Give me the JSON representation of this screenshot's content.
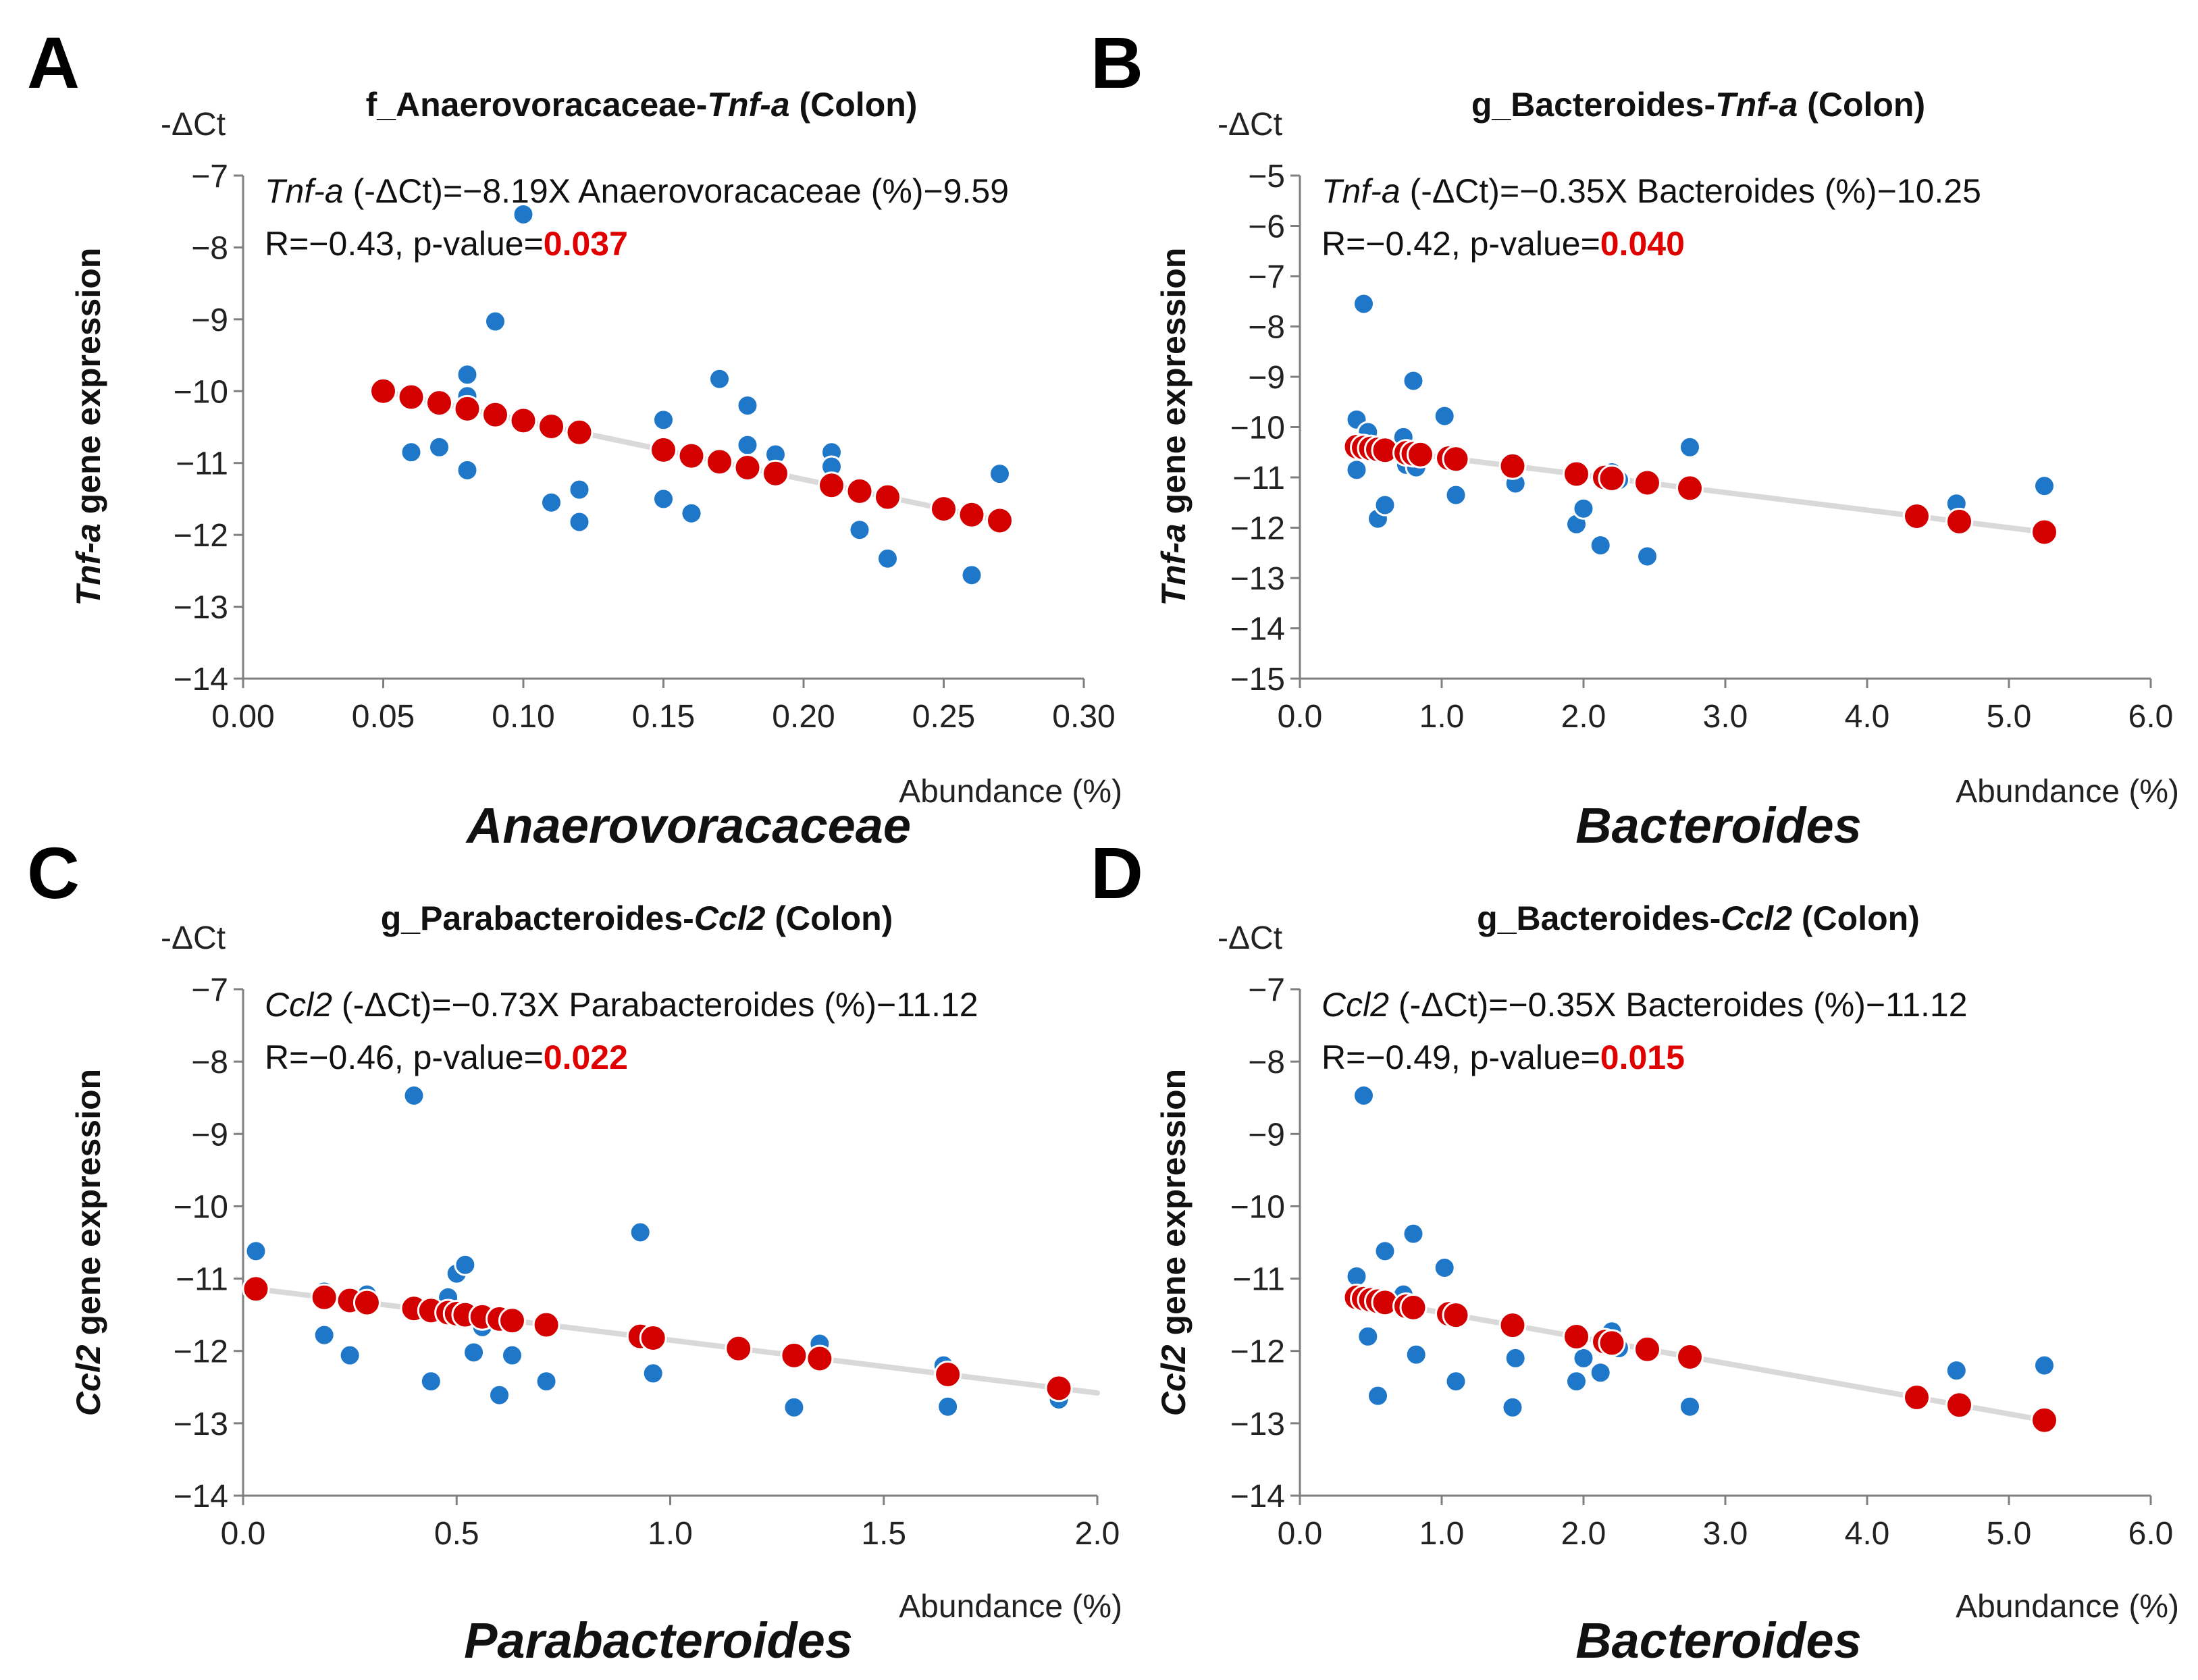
{
  "colors": {
    "observed": "#1f77c9",
    "predicted": "#d40000",
    "pvalue": "#e00000",
    "trendline": "#d9d9d9",
    "axis": "#7f7f7f"
  },
  "chart_data": [
    {
      "type": "scatter",
      "panel": "A",
      "title": {
        "prefix": "f_Anaerovoracaceae-",
        "gene": "Tnf-a",
        "suffix": " (Colon)"
      },
      "equation": {
        "gene": "Tnf-a",
        "rest": " (-ΔCt)=−8.19X Anaerovoracaceae (%)−9.59"
      },
      "stats": {
        "prefix": "R=−0.43, p-value=",
        "pvalue": "0.037"
      },
      "ylabel": {
        "gene": "Tnf-a",
        "rest": " gene expression"
      },
      "yunit": "-ΔCt",
      "xunit": "Abundance (%)",
      "xlabel": "Anaerovoracaceae",
      "xlim": [
        0,
        0.3
      ],
      "ylim": [
        -14,
        -7
      ],
      "xticks": [
        0,
        0.05,
        0.1,
        0.15,
        0.2,
        0.25,
        0.3
      ],
      "xtick_labels": [
        "0.00",
        "0.05",
        "0.10",
        "0.15",
        "0.20",
        "0.25",
        "0.30"
      ],
      "yticks": [
        -14,
        -13,
        -12,
        -11,
        -10,
        -9,
        -8,
        -7
      ],
      "ytick_labels": [
        "−14",
        "−13",
        "−12",
        "−11",
        "−10",
        "−9",
        "−8",
        "−7"
      ],
      "trend": {
        "slope": -8.19,
        "intercept": -9.59,
        "x_range": [
          0.05,
          0.27
        ]
      },
      "predicted_x": [
        0.05,
        0.06,
        0.07,
        0.08,
        0.09,
        0.1,
        0.11,
        0.12,
        0.15,
        0.16,
        0.17,
        0.18,
        0.19,
        0.21,
        0.22,
        0.23,
        0.25,
        0.26,
        0.27
      ],
      "observed": [
        [
          0.06,
          -10.85
        ],
        [
          0.07,
          -10.78
        ],
        [
          0.08,
          -9.77
        ],
        [
          0.08,
          -10.07
        ],
        [
          0.08,
          -11.1
        ],
        [
          0.09,
          -9.03
        ],
        [
          0.1,
          -7.54
        ],
        [
          0.11,
          -11.55
        ],
        [
          0.12,
          -11.37
        ],
        [
          0.12,
          -11.82
        ],
        [
          0.15,
          -10.4
        ],
        [
          0.15,
          -11.5
        ],
        [
          0.16,
          -11.7
        ],
        [
          0.17,
          -9.83
        ],
        [
          0.18,
          -10.2
        ],
        [
          0.18,
          -10.75
        ],
        [
          0.19,
          -10.88
        ],
        [
          0.21,
          -10.85
        ],
        [
          0.21,
          -11.05
        ],
        [
          0.22,
          -11.93
        ],
        [
          0.23,
          -12.33
        ],
        [
          0.25,
          -11.6
        ],
        [
          0.26,
          -12.56
        ],
        [
          0.27,
          -11.15
        ]
      ]
    },
    {
      "type": "scatter",
      "panel": "B",
      "title": {
        "prefix": "g_Bacteroides-",
        "gene": "Tnf-a",
        "suffix": " (Colon)"
      },
      "equation": {
        "gene": "Tnf-a",
        "rest": " (-ΔCt)=−0.35X Bacteroides (%)−10.25"
      },
      "stats": {
        "prefix": "R=−0.42, p-value=",
        "pvalue": "0.040"
      },
      "ylabel": {
        "gene": "Tnf-a",
        "rest": " gene expression"
      },
      "yunit": "-ΔCt",
      "xunit": "Abundance (%)",
      "xlabel": "Bacteroides",
      "xlim": [
        0,
        6
      ],
      "ylim": [
        -15,
        -5
      ],
      "xticks": [
        0,
        1,
        2,
        3,
        4,
        5,
        6
      ],
      "xtick_labels": [
        "0.0",
        "1.0",
        "2.0",
        "3.0",
        "4.0",
        "5.0",
        "6.0"
      ],
      "yticks": [
        -15,
        -14,
        -13,
        -12,
        -11,
        -10,
        -9,
        -8,
        -7,
        -6,
        -5
      ],
      "ytick_labels": [
        "−15",
        "−14",
        "−13",
        "−12",
        "−11",
        "−10",
        "−9",
        "−8",
        "−7",
        "−6",
        "−5"
      ],
      "trend": {
        "slope": -0.35,
        "intercept": -10.25,
        "x_range": [
          0.4,
          5.25
        ]
      },
      "predicted_x": [
        0.4,
        0.45,
        0.5,
        0.55,
        0.6,
        0.75,
        0.8,
        0.85,
        1.05,
        1.1,
        1.5,
        1.95,
        2.15,
        2.2,
        2.45,
        2.75,
        4.35,
        4.65,
        5.25
      ],
      "observed": [
        [
          0.4,
          -9.85
        ],
        [
          0.4,
          -10.85
        ],
        [
          0.45,
          -7.55
        ],
        [
          0.48,
          -10.1
        ],
        [
          0.55,
          -11.82
        ],
        [
          0.6,
          -11.55
        ],
        [
          0.73,
          -10.2
        ],
        [
          0.75,
          -10.75
        ],
        [
          0.8,
          -9.08
        ],
        [
          0.82,
          -10.8
        ],
        [
          1.02,
          -9.78
        ],
        [
          1.1,
          -11.35
        ],
        [
          1.5,
          -10.88
        ],
        [
          1.52,
          -11.12
        ],
        [
          1.95,
          -11.93
        ],
        [
          2.0,
          -11.62
        ],
        [
          2.12,
          -12.35
        ],
        [
          2.2,
          -10.9
        ],
        [
          2.25,
          -11.05
        ],
        [
          2.45,
          -12.57
        ],
        [
          2.75,
          -10.4
        ],
        [
          4.33,
          -11.75
        ],
        [
          4.63,
          -11.52
        ],
        [
          5.25,
          -11.17
        ]
      ]
    },
    {
      "type": "scatter",
      "panel": "C",
      "title": {
        "prefix": "g_Parabacteroides-",
        "gene": "Ccl2",
        "suffix": " (Colon)"
      },
      "equation": {
        "gene": "Ccl2",
        "rest": " (-ΔCt)=−0.73X Parabacteroides (%)−11.12"
      },
      "stats": {
        "prefix": "R=−0.46, p-value=",
        "pvalue": "0.022"
      },
      "ylabel": {
        "gene": "Ccl2",
        "rest": " gene expression"
      },
      "yunit": "-ΔCt",
      "xunit": "Abundance (%)",
      "xlabel": "Parabacteroides",
      "xlim": [
        0,
        2
      ],
      "ylim": [
        -14,
        -7
      ],
      "xticks": [
        0,
        0.5,
        1,
        1.5,
        2
      ],
      "xtick_labels": [
        "0.0",
        "0.5",
        "1.0",
        "1.5",
        "2.0"
      ],
      "yticks": [
        -14,
        -13,
        -12,
        -11,
        -10,
        -9,
        -8,
        -7
      ],
      "ytick_labels": [
        "−14",
        "−13",
        "−12",
        "−11",
        "−10",
        "−9",
        "−8",
        "−7"
      ],
      "trend": {
        "slope": -0.73,
        "intercept": -11.12,
        "x_range": [
          0.03,
          2.0
        ]
      },
      "predicted_x": [
        0.03,
        0.19,
        0.25,
        0.29,
        0.4,
        0.44,
        0.48,
        0.5,
        0.52,
        0.56,
        0.6,
        0.63,
        0.71,
        0.93,
        0.96,
        1.16,
        1.29,
        1.35,
        1.65,
        1.91
      ],
      "observed": [
        [
          0.03,
          -10.62
        ],
        [
          0.19,
          -11.18
        ],
        [
          0.19,
          -11.78
        ],
        [
          0.25,
          -12.06
        ],
        [
          0.29,
          -11.22
        ],
        [
          0.4,
          -8.47
        ],
        [
          0.44,
          -12.42
        ],
        [
          0.48,
          -11.26
        ],
        [
          0.5,
          -10.93
        ],
        [
          0.52,
          -10.81
        ],
        [
          0.54,
          -12.02
        ],
        [
          0.56,
          -11.67
        ],
        [
          0.6,
          -12.61
        ],
        [
          0.63,
          -12.06
        ],
        [
          0.71,
          -12.42
        ],
        [
          0.93,
          -10.36
        ],
        [
          0.96,
          -12.31
        ],
        [
          1.16,
          -11.94
        ],
        [
          1.29,
          -12.78
        ],
        [
          1.35,
          -11.9
        ],
        [
          1.64,
          -12.2
        ],
        [
          1.65,
          -12.77
        ],
        [
          1.91,
          -12.67
        ]
      ]
    },
    {
      "type": "scatter",
      "panel": "D",
      "title": {
        "prefix": "g_Bacteroides-",
        "gene": "Ccl2",
        "suffix": " (Colon)"
      },
      "equation": {
        "gene": "Ccl2",
        "rest": " (-ΔCt)=−0.35X Bacteroides (%)−11.12"
      },
      "stats": {
        "prefix": "R=−0.49, p-value=",
        "pvalue": "0.015"
      },
      "ylabel": {
        "gene": "Ccl2",
        "rest": " gene expression"
      },
      "yunit": "-ΔCt",
      "xunit": "Abundance (%)",
      "xlabel": "Bacteroides",
      "xlim": [
        0,
        6
      ],
      "ylim": [
        -14,
        -7
      ],
      "xticks": [
        0,
        1,
        2,
        3,
        4,
        5,
        6
      ],
      "xtick_labels": [
        "0.0",
        "1.0",
        "2.0",
        "3.0",
        "4.0",
        "5.0",
        "6.0"
      ],
      "yticks": [
        -14,
        -13,
        -12,
        -11,
        -10,
        -9,
        -8,
        -7
      ],
      "ytick_labels": [
        "−14",
        "−13",
        "−12",
        "−11",
        "−10",
        "−9",
        "−8",
        "−7"
      ],
      "trend": {
        "slope": -0.35,
        "intercept": -11.12,
        "x_range": [
          0.4,
          5.25
        ]
      },
      "predicted_x": [
        0.4,
        0.45,
        0.5,
        0.55,
        0.6,
        0.75,
        0.8,
        1.05,
        1.1,
        1.5,
        1.95,
        2.15,
        2.2,
        2.45,
        2.75,
        4.35,
        4.65,
        5.25
      ],
      "observed": [
        [
          0.4,
          -10.97
        ],
        [
          0.45,
          -8.47
        ],
        [
          0.48,
          -11.8
        ],
        [
          0.55,
          -12.62
        ],
        [
          0.6,
          -10.62
        ],
        [
          0.73,
          -11.22
        ],
        [
          0.8,
          -10.38
        ],
        [
          0.82,
          -12.05
        ],
        [
          1.02,
          -10.85
        ],
        [
          1.1,
          -12.42
        ],
        [
          1.5,
          -12.78
        ],
        [
          1.52,
          -12.1
        ],
        [
          1.95,
          -12.42
        ],
        [
          2.0,
          -12.1
        ],
        [
          2.12,
          -12.3
        ],
        [
          2.2,
          -11.73
        ],
        [
          2.25,
          -11.96
        ],
        [
          2.45,
          -11.93
        ],
        [
          2.75,
          -12.77
        ],
        [
          4.33,
          -12.62
        ],
        [
          4.63,
          -12.27
        ],
        [
          5.25,
          -12.2
        ]
      ]
    }
  ]
}
